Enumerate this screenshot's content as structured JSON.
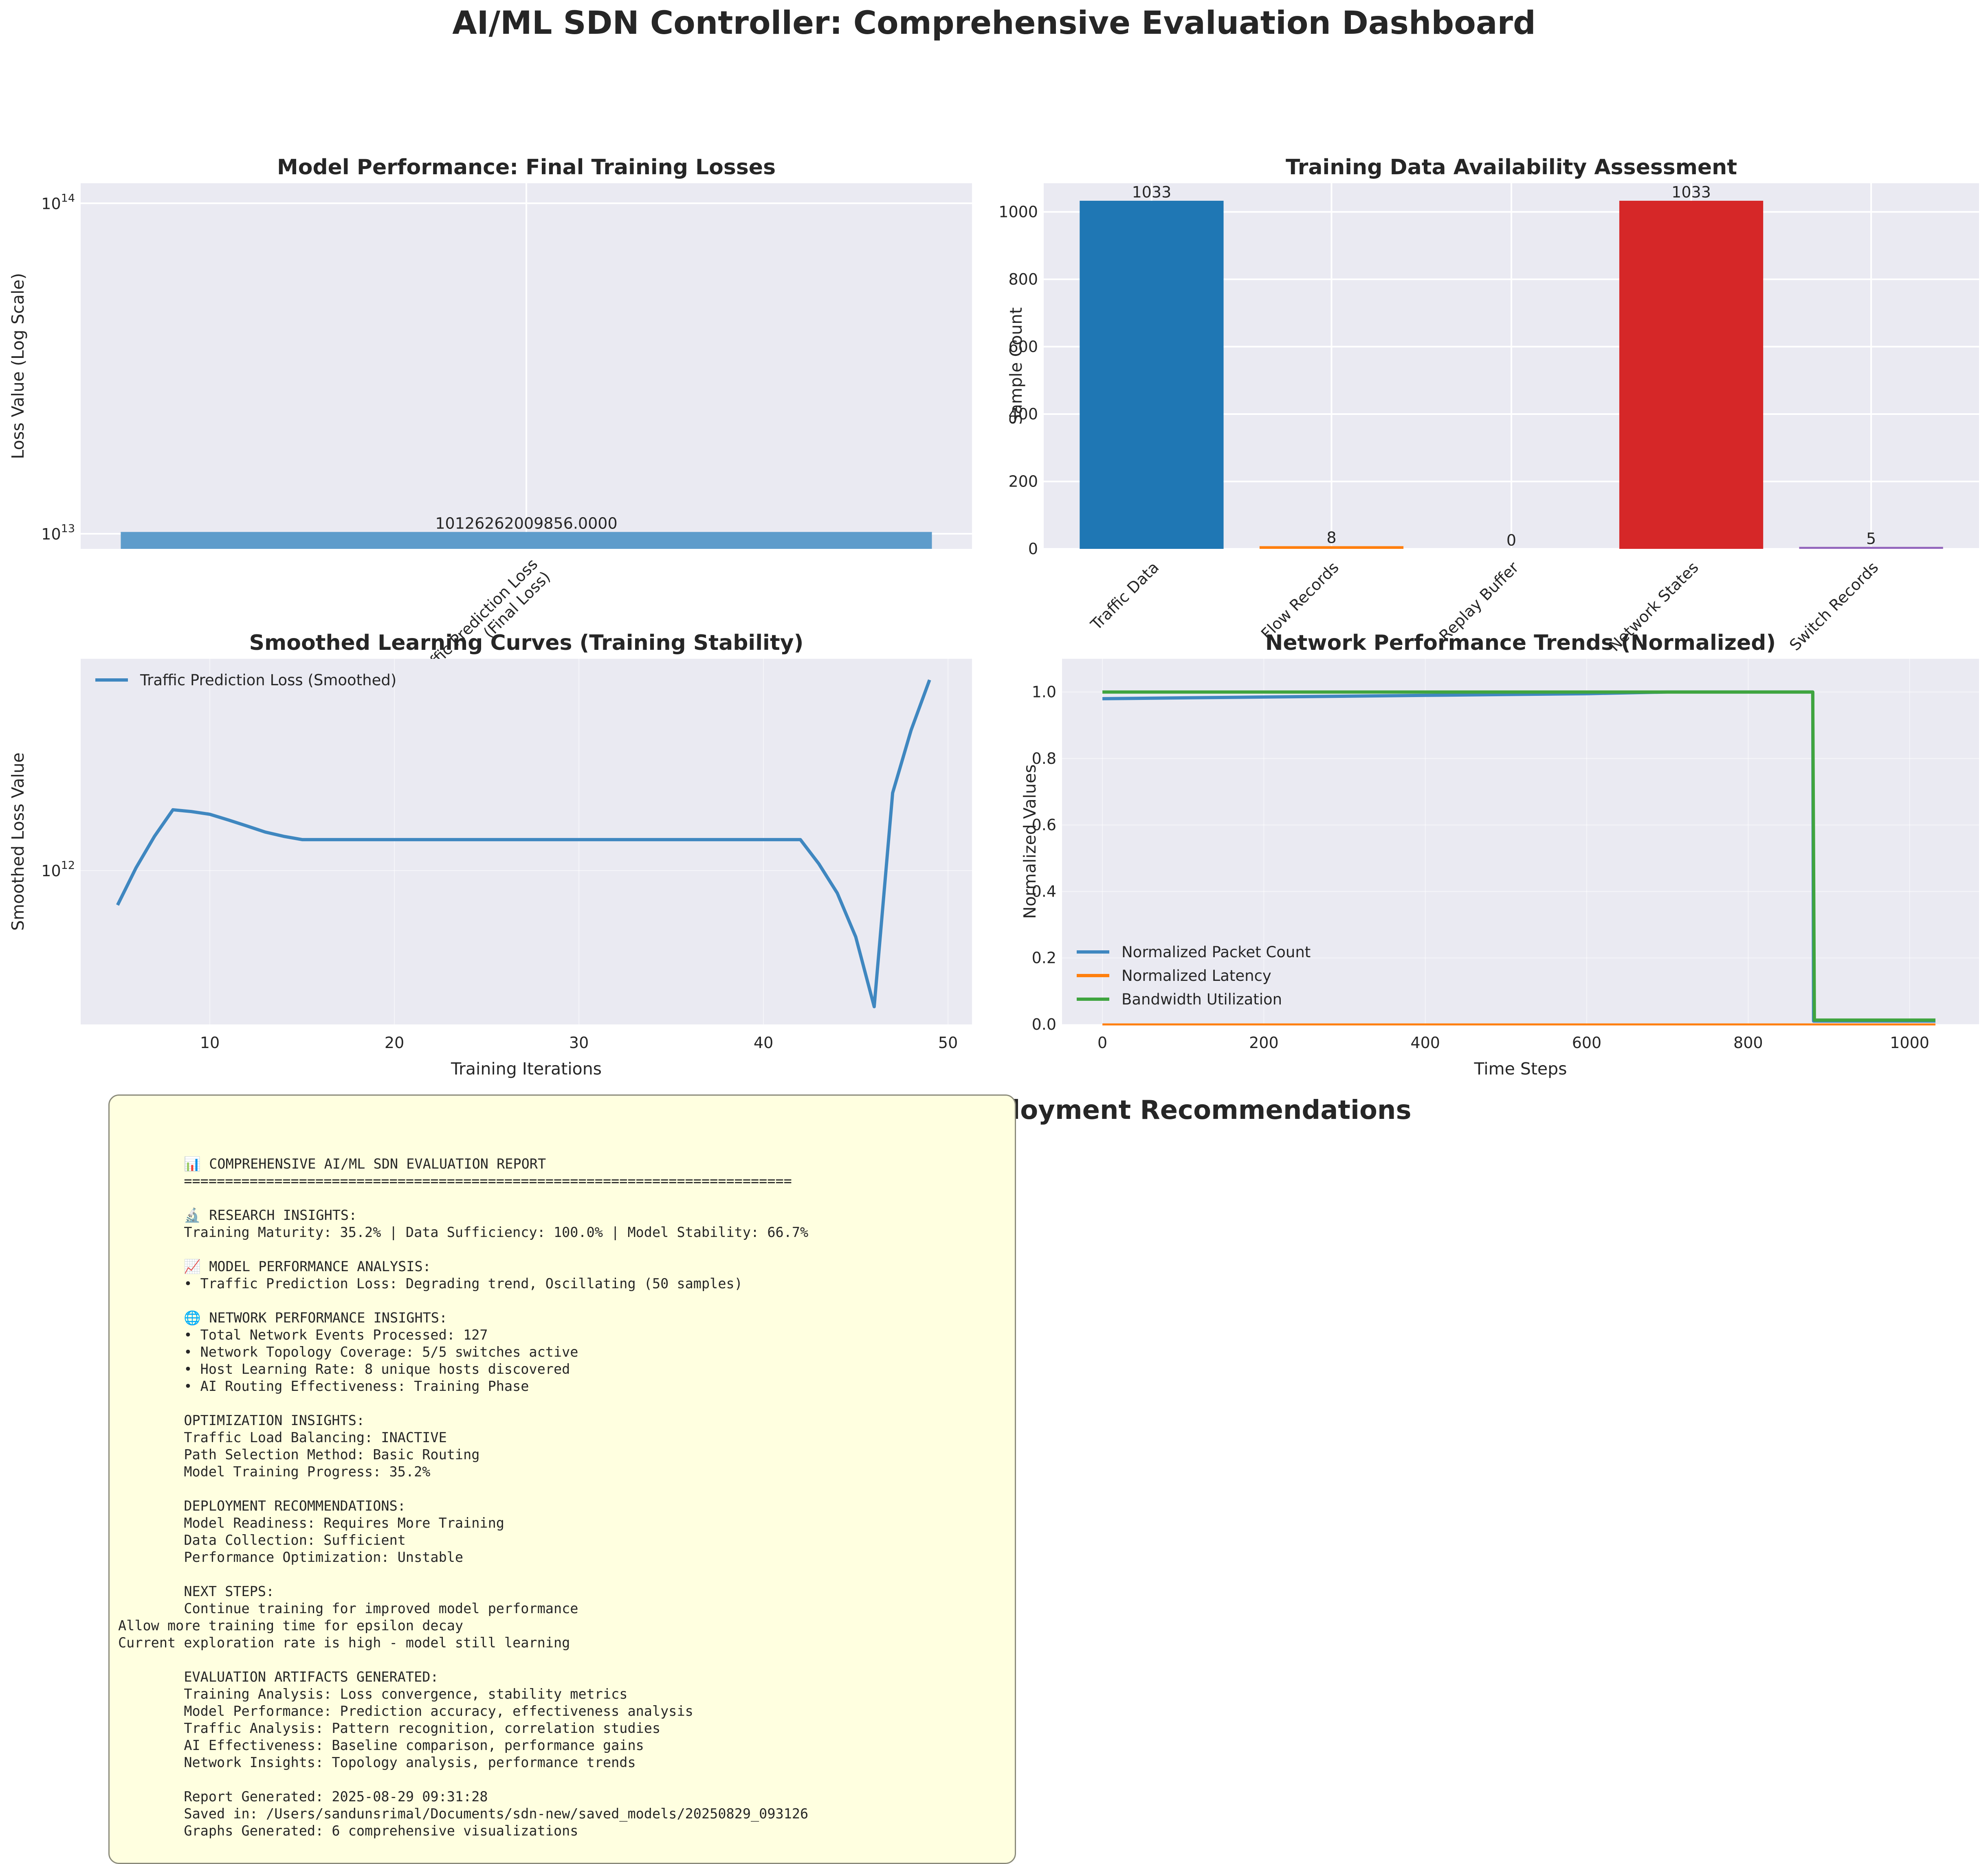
{
  "suptitle": "AI/ML SDN Controller: Comprehensive Evaluation Dashboard",
  "colors": {
    "panel_bg": "#eaeaf2",
    "grid": "#ffffff",
    "blue": "#1f77b4",
    "orange": "#ff7f0e",
    "green": "#2ca02c",
    "red": "#d62728",
    "purple": "#9467bd",
    "line_blue": "#3f87c0",
    "report_bg": "#ffffe0"
  },
  "chart_data": [
    {
      "id": "losses",
      "type": "bar",
      "title": "Model Performance: Final Training Losses",
      "xlabel": "",
      "ylabel": "Loss Value (Log Scale)",
      "yscale": "log",
      "ylim": [
        9000000000000.0,
        115000000000000.0
      ],
      "yticks": [
        {
          "value": 10000000000000.0,
          "exp": "13"
        },
        {
          "value": 100000000000000.0,
          "exp": "14"
        }
      ],
      "categories": [
        "Traffic Prediction Loss\n(Final Loss)"
      ],
      "values": [
        10126262009856.0
      ],
      "data_labels": [
        "10126262009856.0000"
      ],
      "bar_color": "#5e9ccb",
      "grid": true
    },
    {
      "id": "availability",
      "type": "bar",
      "title": "Training Data Availability Assessment",
      "xlabel": "",
      "ylabel": "Sample Count",
      "ylim": [
        0,
        1085
      ],
      "yticks": [
        0,
        200,
        400,
        600,
        800,
        1000
      ],
      "categories": [
        "Traffic Data",
        "Flow Records",
        "Replay Buffer",
        "Network States",
        "Switch Records"
      ],
      "values": [
        1033,
        8,
        0,
        1033,
        5
      ],
      "data_labels": [
        "1033",
        "8",
        "0",
        "1033",
        "5"
      ],
      "bar_colors": [
        "#1f77b4",
        "#ff7f0e",
        "#2ca02c",
        "#d62728",
        "#9467bd"
      ],
      "grid": true
    },
    {
      "id": "smoothed",
      "type": "line",
      "title": "Smoothed Learning Curves (Training Stability)",
      "xlabel": "Training Iterations",
      "ylabel": "Smoothed Loss Value",
      "yscale": "log",
      "xlim": [
        3.0,
        51.3
      ],
      "ylim": [
        330000000000.0,
        4600000000000.0
      ],
      "xticks": [
        10,
        20,
        30,
        40,
        50
      ],
      "yticks": [
        {
          "value": 1000000000000.0,
          "exp": "12"
        }
      ],
      "legend_loc": "upper-left",
      "grid": true,
      "series": [
        {
          "name": "Traffic Prediction Loss (Smoothed)",
          "color": "#3f87c0",
          "x": [
            5,
            6,
            7,
            8,
            9,
            10,
            11,
            12,
            13,
            14,
            15,
            16,
            20,
            25,
            30,
            35,
            40,
            42,
            43,
            44,
            45,
            46,
            47,
            48,
            49
          ],
          "y": [
            780000000000.0,
            1020000000000.0,
            1280000000000.0,
            1550000000000.0,
            1530000000000.0,
            1500000000000.0,
            1440000000000.0,
            1380000000000.0,
            1320000000000.0,
            1280000000000.0,
            1250000000000.0,
            1250000000000.0,
            1250000000000.0,
            1250000000000.0,
            1250000000000.0,
            1250000000000.0,
            1250000000000.0,
            1250000000000.0,
            1050000000000.0,
            850000000000.0,
            620000000000.0,
            375000000000.0,
            1750000000000.0,
            2750000000000.0,
            3950000000000.0
          ]
        }
      ]
    },
    {
      "id": "trends",
      "type": "line",
      "title": "Network Performance Trends (Normalized)",
      "xlabel": "Time Steps",
      "ylabel": "Normalized Values",
      "xlim": [
        -50,
        1086
      ],
      "ylim": [
        0,
        1.1
      ],
      "xticks": [
        0,
        200,
        400,
        600,
        800,
        1000
      ],
      "yticks": [
        0.0,
        0.2,
        0.4,
        0.6,
        0.8,
        1.0
      ],
      "legend_loc": "lower-left",
      "grid": true,
      "series": [
        {
          "name": "Normalized Packet Count",
          "color": "#3f87c0",
          "x": [
            0,
            200,
            400,
            600,
            700,
            880,
            881,
            1032
          ],
          "y": [
            0.98,
            0.985,
            0.99,
            0.995,
            1.0,
            1.0,
            0.01,
            0.01
          ]
        },
        {
          "name": "Normalized Latency",
          "color": "#ff7f0e",
          "x": [
            0,
            1032
          ],
          "y": [
            0.0,
            0.0
          ]
        },
        {
          "name": "Bandwidth Utilization",
          "color": "#3fa43f",
          "x": [
            0,
            880,
            882,
            1032
          ],
          "y": [
            1.0,
            1.0,
            0.013,
            0.013
          ]
        }
      ]
    }
  ],
  "insights": {
    "title": "Research Insights & Deployment Recommendations",
    "report_lines": [
      "        📊 COMPREHENSIVE AI/ML SDN EVALUATION REPORT",
      "        ==========================================================================",
      "",
      "        🔬 RESEARCH INSIGHTS:",
      "        Training Maturity: 35.2% | Data Sufficiency: 100.0% | Model Stability: 66.7%",
      "",
      "        📈 MODEL PERFORMANCE ANALYSIS:",
      "        • Traffic Prediction Loss: Degrading trend, Oscillating (50 samples)",
      "",
      "        🌐 NETWORK PERFORMANCE INSIGHTS:",
      "        • Total Network Events Processed: 127",
      "        • Network Topology Coverage: 5/5 switches active",
      "        • Host Learning Rate: 8 unique hosts discovered",
      "        • AI Routing Effectiveness: Training Phase",
      "",
      "        OPTIMIZATION INSIGHTS:",
      "        Traffic Load Balancing: INACTIVE",
      "        Path Selection Method: Basic Routing",
      "        Model Training Progress: 35.2%",
      "",
      "        DEPLOYMENT RECOMMENDATIONS:",
      "        Model Readiness: Requires More Training",
      "        Data Collection: Sufficient",
      "        Performance Optimization: Unstable",
      "",
      "        NEXT STEPS:",
      "        Continue training for improved model performance",
      "Allow more training time for epsilon decay",
      "Current exploration rate is high - model still learning",
      "",
      "        EVALUATION ARTIFACTS GENERATED:",
      "        Training Analysis: Loss convergence, stability metrics",
      "        Model Performance: Prediction accuracy, effectiveness analysis",
      "        Traffic Analysis: Pattern recognition, correlation studies",
      "        AI Effectiveness: Baseline comparison, performance gains",
      "        Network Insights: Topology analysis, performance trends",
      "",
      "        Report Generated: 2025-08-29 09:31:28",
      "        Saved in: /Users/sandunsrimal/Documents/sdn-new/saved_models/20250829_093126",
      "        Graphs Generated: 6 comprehensive visualizations"
    ]
  }
}
